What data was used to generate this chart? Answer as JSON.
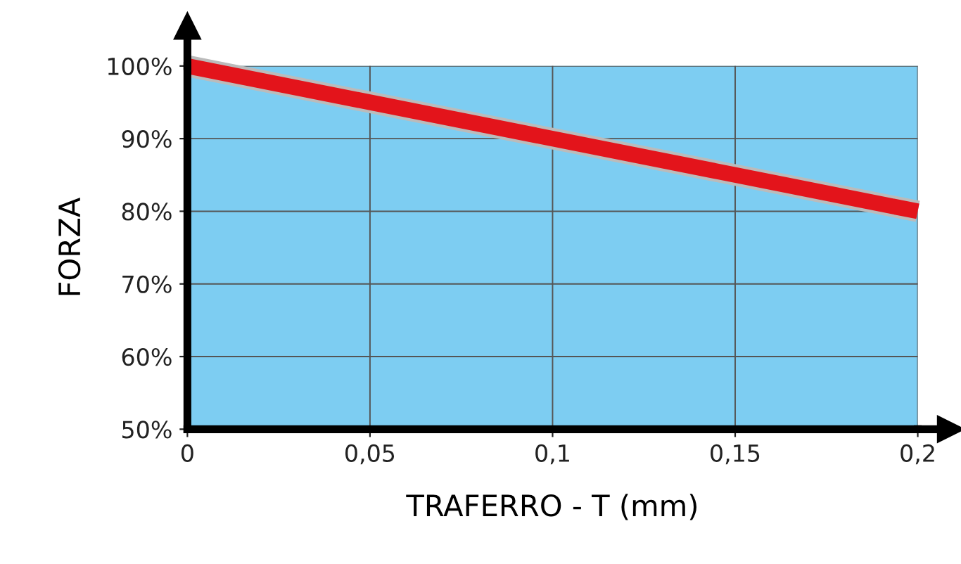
{
  "chart_data": {
    "type": "line",
    "xlabel": "TRAFERRO - T (mm)",
    "ylabel": "FORZA",
    "x": [
      0,
      0.2
    ],
    "series": [
      {
        "color": "#e3141b",
        "values": [
          100,
          80
        ]
      }
    ],
    "xlim": [
      0,
      0.2
    ],
    "ylim": [
      50,
      100
    ],
    "xticks": [
      0,
      {
        "value": 0.05,
        "label": "0,05"
      },
      {
        "value": 0.1,
        "label": "0,1"
      },
      {
        "value": 0.15,
        "label": "0,15"
      },
      {
        "value": 0.2,
        "label": "0,2"
      }
    ],
    "yticks": [
      {
        "value": 50,
        "label": "50%"
      },
      {
        "value": 60,
        "label": "60%"
      },
      {
        "value": 70,
        "label": "70%"
      },
      {
        "value": 80,
        "label": "80%"
      },
      {
        "value": 90,
        "label": "90%"
      },
      {
        "value": 100,
        "label": "100%"
      }
    ],
    "grid": true,
    "marker": "none",
    "line_style": "solid"
  }
}
